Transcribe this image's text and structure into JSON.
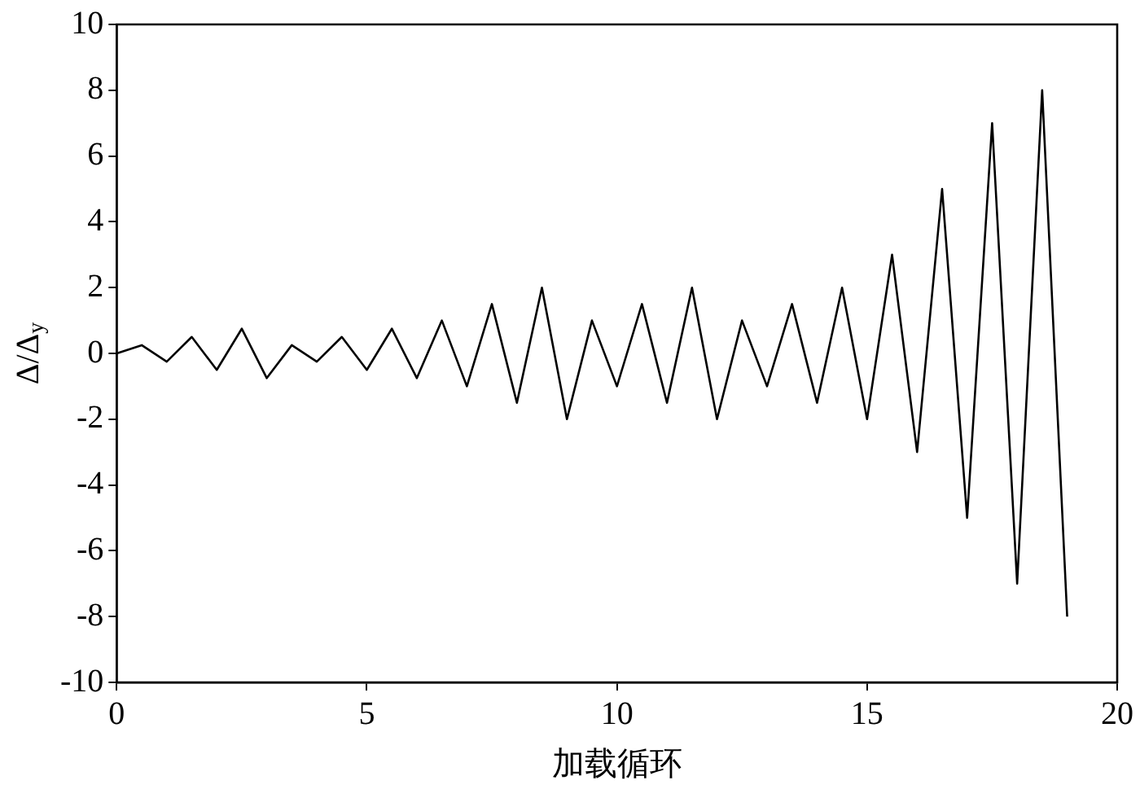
{
  "chart_data": {
    "type": "line",
    "xlabel": "加载循环",
    "ylabel": "Δ/Δ$_{y}$",
    "x": [
      0,
      0.5,
      1,
      1.5,
      2,
      2.5,
      3,
      3.5,
      4,
      4.5,
      5,
      5.5,
      6,
      6.5,
      7,
      7.5,
      8,
      8.5,
      9,
      9.5,
      10,
      10.5,
      11,
      11.5,
      12,
      12.5,
      13,
      13.5,
      14,
      14.5,
      15,
      15.5,
      16,
      16.5,
      17,
      17.5,
      18,
      18.5,
      19
    ],
    "series": [
      {
        "color": "#000000",
        "values": [
          0,
          0.25,
          -0.25,
          0.5,
          -0.5,
          0.75,
          -0.75,
          0.25,
          -0.25,
          0.5,
          -0.5,
          0.75,
          -0.75,
          1,
          -1,
          1.5,
          -1.5,
          2,
          -2,
          1,
          -1,
          1.5,
          -1.5,
          2,
          -2,
          1,
          -1,
          1.5,
          -1.5,
          2,
          -2,
          3,
          -3,
          5,
          -5,
          7,
          -7,
          8,
          -8
        ]
      }
    ],
    "xlim": [
      0,
      20
    ],
    "xticks": [
      0,
      5,
      10,
      15,
      20
    ],
    "ylim": [
      -10,
      10
    ],
    "yticks": [
      -10,
      -8,
      -6,
      -4,
      -2,
      0,
      2,
      4,
      6,
      8,
      10
    ],
    "marker": "none",
    "line_style": "solid",
    "legend": false
  }
}
